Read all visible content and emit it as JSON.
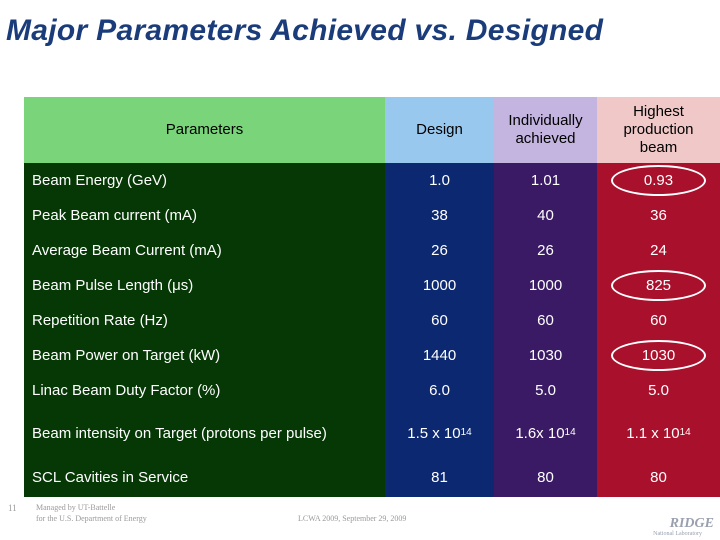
{
  "title": "Major Parameters Achieved vs. Designed",
  "colors": {
    "header_params": "#7ad47a",
    "header_design": "#99c8ee",
    "header_indiv": "#c4b4e0",
    "header_prod": "#f0c8c8",
    "body_params": "#063806",
    "body_design": "#0c2870",
    "body_indiv": "#3a1a64",
    "body_prod": "#a8102c"
  },
  "headers": {
    "parameters": "Parameters",
    "design": "Design",
    "individual": "Individually achieved",
    "production": "Highest production beam"
  },
  "rows": [
    {
      "label": "Beam Energy (GeV)",
      "design": "1.0",
      "individual": "1.01",
      "production": "0.93",
      "circled": true
    },
    {
      "label": "Peak Beam current (mA)",
      "design": "38",
      "individual": "40",
      "production": "36",
      "circled": false
    },
    {
      "label": "Average Beam Current (mA)",
      "design": "26",
      "individual": "26",
      "production": "24",
      "circled": false
    },
    {
      "label": "Beam Pulse Length (μs)",
      "design": "1000",
      "individual": "1000",
      "production": "825",
      "circled": true
    },
    {
      "label": "Repetition Rate (Hz)",
      "design": "60",
      "individual": "60",
      "production": "60",
      "circled": false
    },
    {
      "label": "Beam Power on Target  (kW)",
      "design": "1440",
      "individual": "1030",
      "production": "1030",
      "circled": true
    },
    {
      "label": "Linac Beam Duty Factor (%)",
      "design": "6.0",
      "individual": "5.0",
      "production": "5.0",
      "circled": false
    },
    {
      "label": "Beam intensity on Target (protons per pulse)",
      "design": "1.5 x 10",
      "design_exp": "14",
      "individual": "1.6x 10",
      "individual_exp": "14",
      "production": "1.1 x 10",
      "production_exp": "14",
      "circled": false
    },
    {
      "label": "SCL Cavities in Service",
      "design": "81",
      "individual": "80",
      "production": "80",
      "circled": false
    }
  ],
  "footer": {
    "slide_number": "11",
    "managed_line1": "Managed by UT-Battelle",
    "managed_line2": "for the U.S. Department of Energy",
    "event": "LCWA 2009, September 29, 2009"
  },
  "logo": {
    "name": "RIDGE",
    "sub": "National Laboratory"
  }
}
